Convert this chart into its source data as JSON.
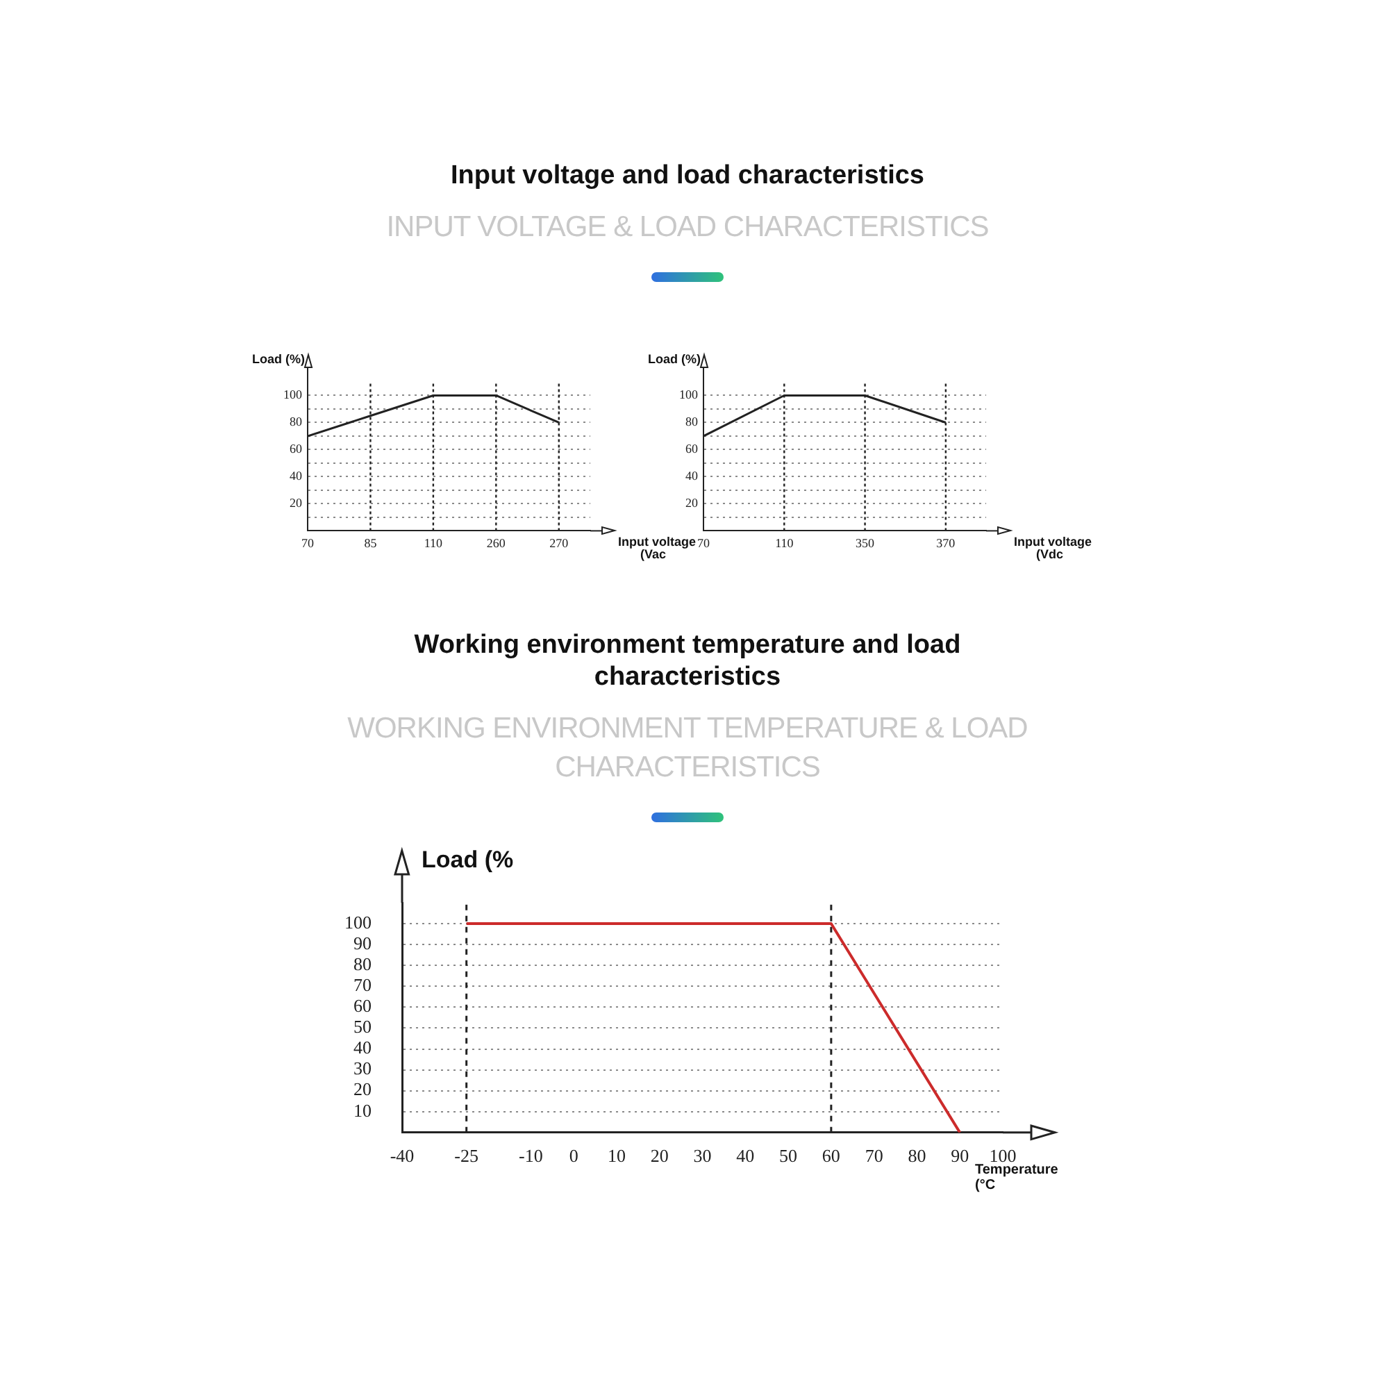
{
  "chart_data": [
    {
      "type": "line",
      "title": "Input voltage and load characteristics",
      "subtitle": "INPUT VOLTAGE & LOAD CHARACTERISTICS",
      "ylabel": "Load (%)",
      "xlabel": "Input voltage (Vac",
      "categories": [
        "70",
        "85",
        "110",
        "260",
        "270"
      ],
      "series": [
        {
          "color": "#222222",
          "values": [
            70,
            85,
            100,
            100,
            80
          ]
        }
      ],
      "ylim": [
        0,
        110
      ],
      "yticks": [
        {
          "value": 10,
          "label": null
        },
        20,
        {
          "value": 30,
          "label": null
        },
        40,
        {
          "value": 50,
          "label": null
        },
        60,
        {
          "value": 70,
          "label": null
        },
        80,
        {
          "value": 90,
          "label": null
        },
        100
      ],
      "ref_lines": [
        {
          "axis": "x",
          "value": "85",
          "line_style": "dotted",
          "color": "#222222"
        },
        {
          "axis": "x",
          "value": "110",
          "line_style": "dotted",
          "color": "#222222"
        },
        {
          "axis": "x",
          "value": "260",
          "line_style": "dotted",
          "color": "#222222"
        },
        {
          "axis": "x",
          "value": "270",
          "line_style": "dotted",
          "color": "#222222"
        }
      ],
      "grid": "y",
      "legend": false,
      "marker": "none",
      "line_style": "solid"
    },
    {
      "type": "line",
      "ylabel": "Load (%)",
      "xlabel": "Input voltage (Vdc",
      "categories": [
        "70",
        "110",
        "350",
        "370"
      ],
      "series": [
        {
          "color": "#222222",
          "values": [
            70,
            100,
            100,
            80
          ]
        }
      ],
      "ylim": [
        0,
        110
      ],
      "yticks": [
        {
          "value": 10,
          "label": null
        },
        20,
        {
          "value": 30,
          "label": null
        },
        40,
        {
          "value": 50,
          "label": null
        },
        60,
        {
          "value": 70,
          "label": null
        },
        80,
        {
          "value": 90,
          "label": null
        },
        100
      ],
      "ref_lines": [
        {
          "axis": "x",
          "value": "110",
          "line_style": "dotted",
          "color": "#222222"
        },
        {
          "axis": "x",
          "value": "350",
          "line_style": "dotted",
          "color": "#222222"
        },
        {
          "axis": "x",
          "value": "370",
          "line_style": "dotted",
          "color": "#222222"
        }
      ],
      "grid": "y",
      "legend": false,
      "marker": "none",
      "line_style": "solid"
    },
    {
      "type": "line",
      "title": "Working environment temperature and load characteristics",
      "subtitle": "WORKING ENVIRONMENT TEMPERATURE & LOAD CHARACTERISTICS",
      "ylabel": "Load (%",
      "xlabel": "Temperature (°C",
      "x": [
        -25,
        60,
        90
      ],
      "series": [
        {
          "color": "#cc2b2b",
          "values": [
            100,
            100,
            0
          ]
        }
      ],
      "xlim": [
        -40,
        100
      ],
      "xticks": [
        -40,
        -25,
        -10,
        0,
        10,
        20,
        30,
        40,
        50,
        60,
        70,
        80,
        90,
        100
      ],
      "ylim": [
        0,
        110
      ],
      "yticks": [
        10,
        20,
        30,
        40,
        50,
        60,
        70,
        80,
        90,
        100
      ],
      "ref_lines": [
        {
          "axis": "x",
          "value": -25,
          "line_style": "dashed",
          "color": "#222222"
        },
        {
          "axis": "x",
          "value": 60,
          "line_style": "dashed",
          "color": "#222222"
        }
      ],
      "grid": "y",
      "legend": false,
      "marker": "none",
      "line_style": "solid"
    }
  ]
}
